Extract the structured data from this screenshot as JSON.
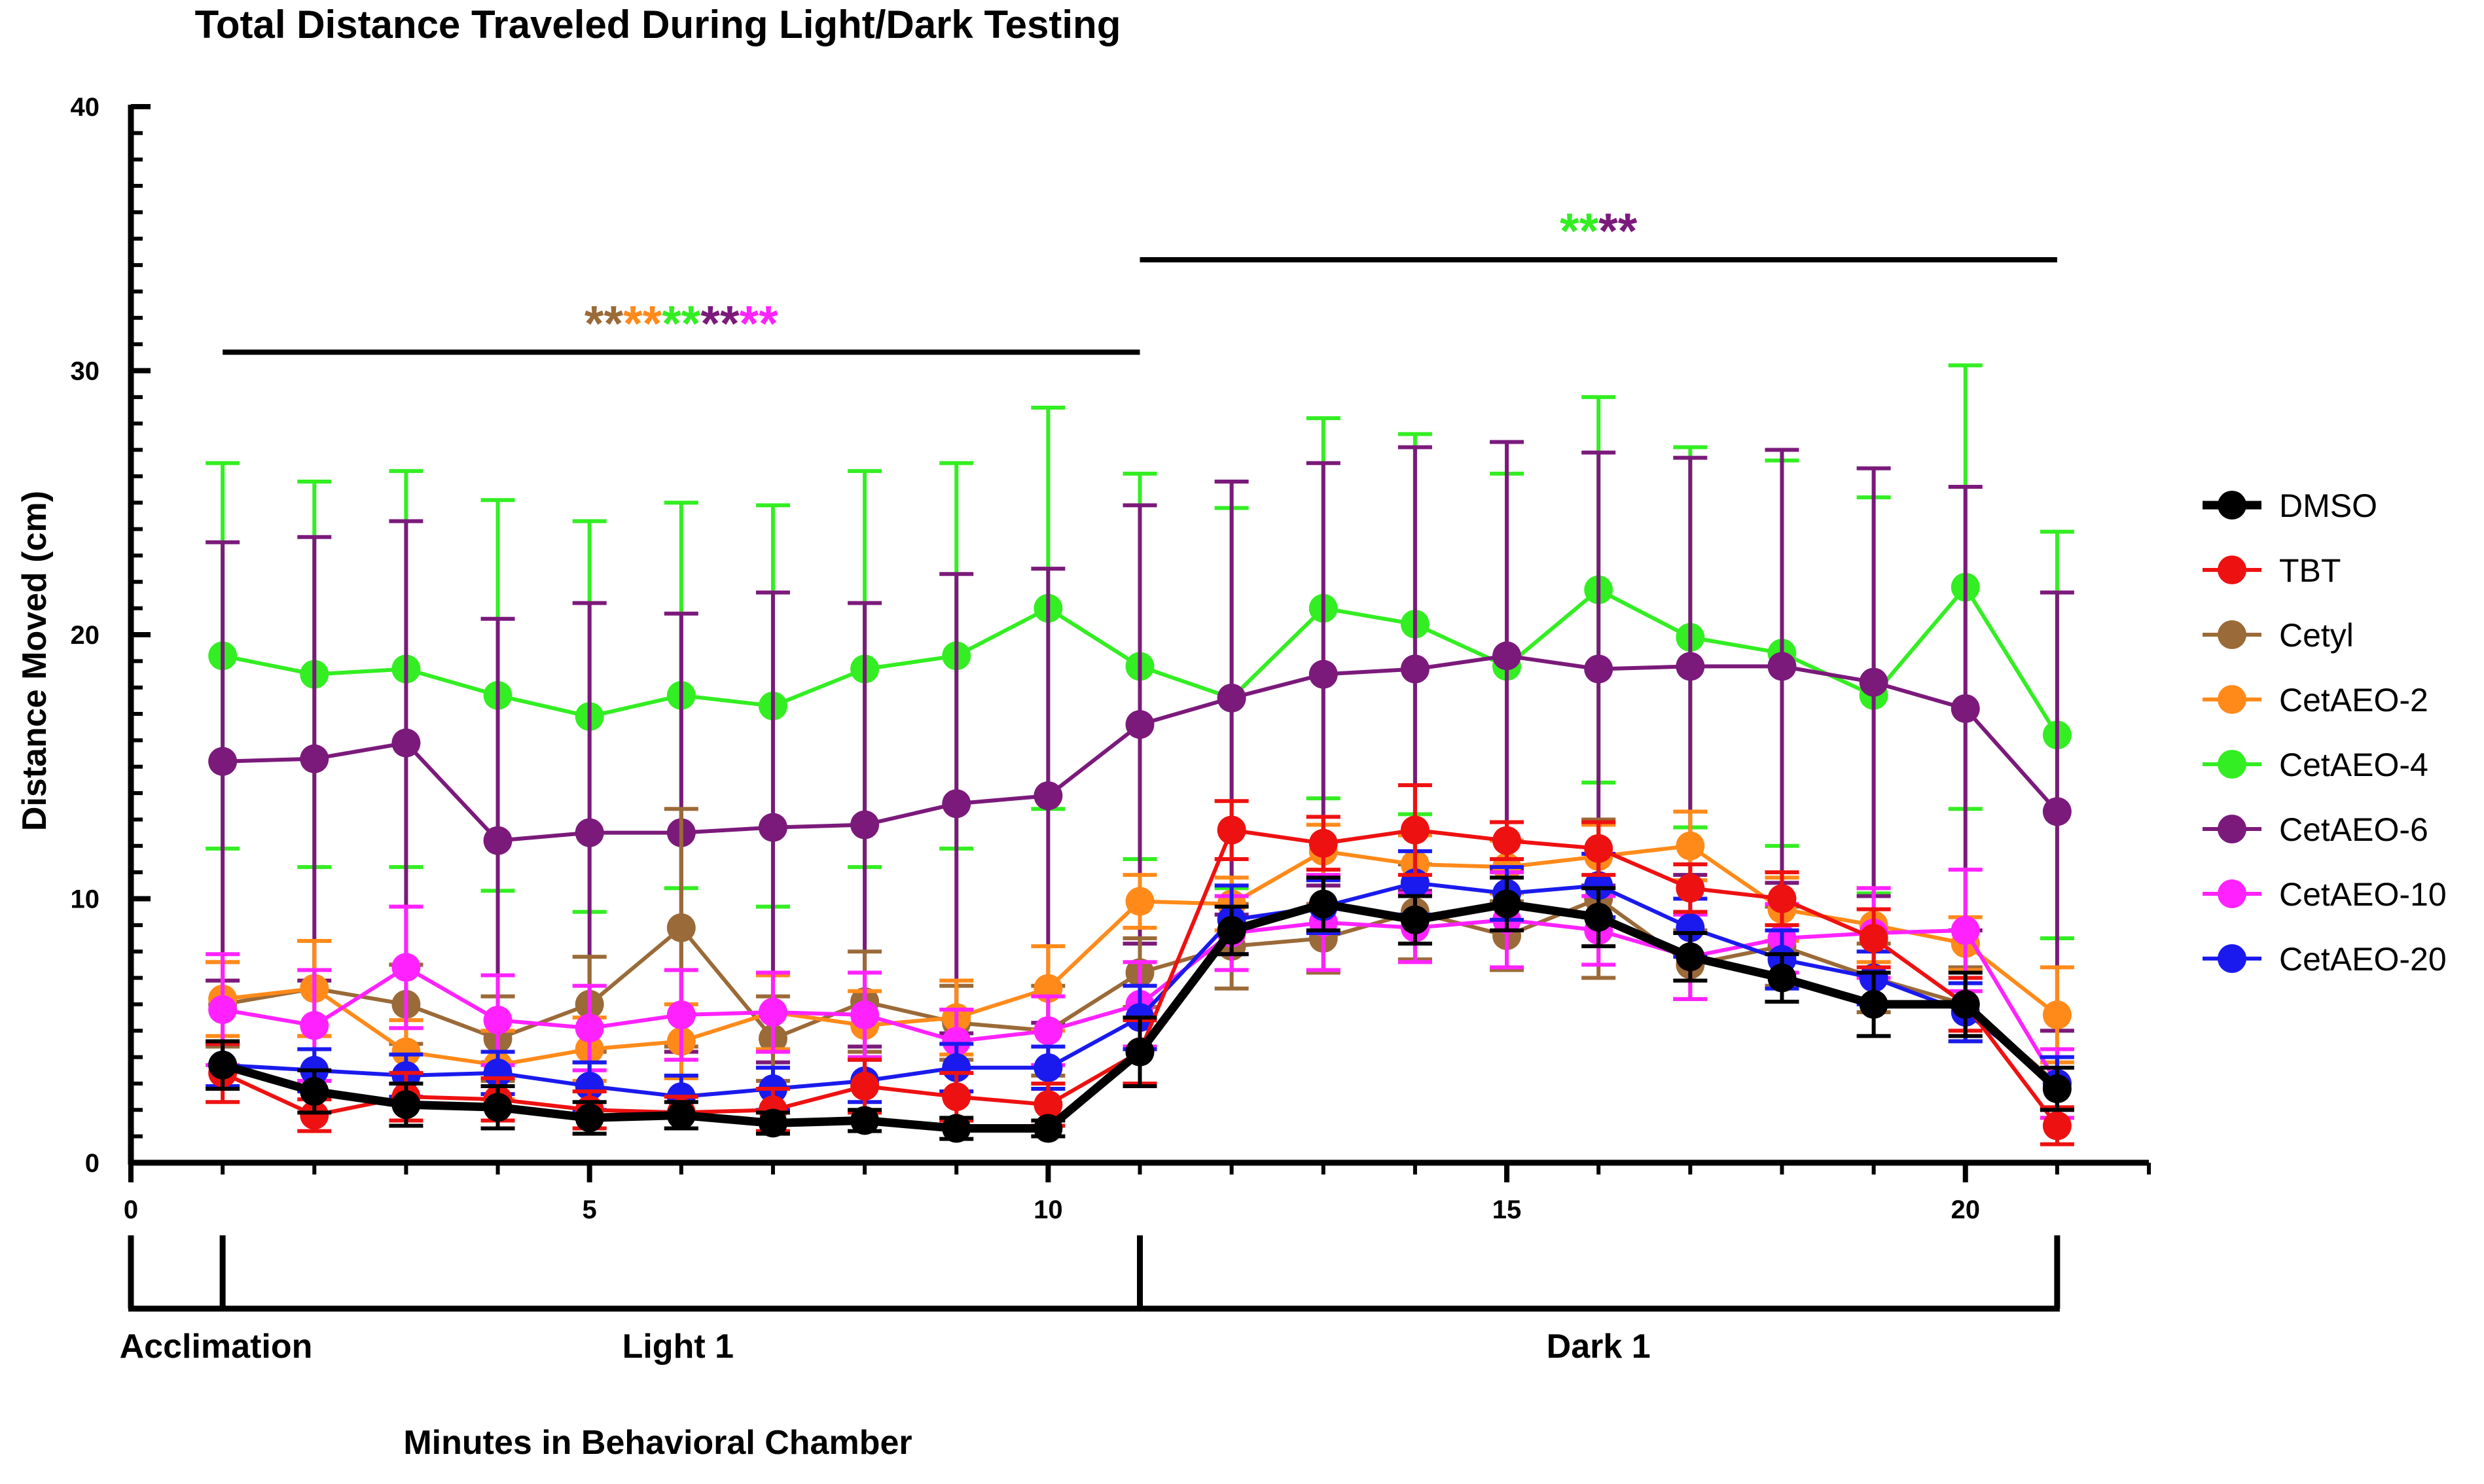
{
  "chart_data": {
    "type": "line",
    "title": "Total Distance Traveled During Light/Dark Testing",
    "xlabel": "Minutes in Behavioral Chamber",
    "ylabel": "Distance Moved (cm)",
    "xlim": [
      0,
      22
    ],
    "ylim": [
      0,
      40
    ],
    "x_ticks": [
      0,
      5,
      10,
      15,
      20
    ],
    "y_ticks": [
      0,
      10,
      20,
      30,
      40
    ],
    "x": [
      1,
      2,
      3,
      4,
      5,
      6,
      7,
      8,
      9,
      10,
      11,
      12,
      13,
      14,
      15,
      16,
      17,
      18,
      19,
      20,
      21
    ],
    "phases": [
      {
        "label": "Acclimation",
        "start": 0,
        "end": 1
      },
      {
        "label": "Light 1",
        "start": 1,
        "end": 11
      },
      {
        "label": "Dark 1",
        "start": 11,
        "end": 21
      }
    ],
    "significance": [
      {
        "start": 1,
        "end": 11,
        "y": 30.7,
        "marks": [
          {
            "text": "**",
            "color": "#9a6a38"
          },
          {
            "text": "**",
            "color": "#ff8a1a"
          },
          {
            "text": "**",
            "color": "#33ee22"
          },
          {
            "text": "**",
            "color": "#7b1a7b"
          },
          {
            "text": "**",
            "color": "#ff22ff"
          }
        ]
      },
      {
        "start": 11,
        "end": 21,
        "y": 34.2,
        "marks": [
          {
            "text": "**",
            "color": "#33ee22"
          },
          {
            "text": "**",
            "color": "#7b1a7b"
          }
        ]
      }
    ],
    "series": [
      {
        "name": "CetAEO-4",
        "color": "#33ee22",
        "values": [
          19.2,
          18.5,
          18.7,
          17.7,
          16.9,
          17.7,
          17.3,
          18.7,
          19.2,
          21.0,
          18.8,
          17.6,
          21.0,
          20.4,
          18.8,
          21.7,
          19.9,
          19.3,
          17.7,
          21.8,
          16.2
        ],
        "errors": [
          7.3,
          7.3,
          7.5,
          7.4,
          7.4,
          7.3,
          7.6,
          7.5,
          7.3,
          7.6,
          7.3,
          7.2,
          7.2,
          7.2,
          7.3,
          7.3,
          7.2,
          7.3,
          7.5,
          8.4,
          7.7
        ]
      },
      {
        "name": "CetAEO-6",
        "color": "#7b1a7b",
        "values": [
          15.2,
          15.3,
          15.9,
          12.2,
          12.5,
          12.5,
          12.7,
          12.8,
          13.6,
          13.9,
          16.6,
          17.6,
          18.5,
          18.7,
          19.2,
          18.7,
          18.8,
          18.8,
          18.2,
          17.2,
          13.3
        ],
        "errors": [
          8.3,
          8.4,
          8.4,
          8.4,
          8.7,
          8.3,
          8.9,
          8.4,
          8.7,
          8.6,
          8.3,
          8.2,
          8.0,
          8.4,
          8.1,
          8.2,
          7.9,
          8.2,
          8.1,
          8.4,
          8.3
        ]
      },
      {
        "name": "Cetyl",
        "color": "#9a6a38",
        "values": [
          6.0,
          6.6,
          6.0,
          4.7,
          6.0,
          8.9,
          4.7,
          6.1,
          5.3,
          5.0,
          7.2,
          8.2,
          8.5,
          9.5,
          8.6,
          10.0,
          7.5,
          8.2,
          7.0,
          6.0,
          3.0
        ],
        "errors": [
          1.6,
          1.8,
          1.5,
          1.6,
          1.8,
          4.5,
          1.6,
          1.9,
          1.4,
          1.7,
          1.3,
          1.6,
          1.3,
          1.8,
          1.3,
          3.0,
          1.3,
          1.5,
          1.3,
          1.4,
          1.3
        ]
      },
      {
        "name": "CetAEO-2",
        "color": "#ff8a1a",
        "values": [
          6.2,
          6.6,
          4.2,
          3.7,
          4.3,
          4.6,
          5.7,
          5.2,
          5.5,
          6.6,
          9.9,
          9.8,
          11.8,
          11.3,
          11.2,
          11.6,
          12.0,
          9.6,
          9.0,
          8.3,
          5.6
        ],
        "errors": [
          1.4,
          1.8,
          1.2,
          1.3,
          1.2,
          1.4,
          1.4,
          1.3,
          1.4,
          1.6,
          1.0,
          1.0,
          1.0,
          1.1,
          1.0,
          1.2,
          1.3,
          1.2,
          1.4,
          1.0,
          1.8
        ]
      },
      {
        "name": "CetAEO-10",
        "color": "#ff22ff",
        "values": [
          5.8,
          5.2,
          7.4,
          5.4,
          5.1,
          5.6,
          5.7,
          5.6,
          4.6,
          5.0,
          6.0,
          8.7,
          9.1,
          8.9,
          9.2,
          8.8,
          7.8,
          8.5,
          8.7,
          8.8,
          3.0
        ],
        "errors": [
          2.1,
          2.1,
          2.3,
          1.7,
          1.6,
          1.7,
          1.5,
          1.6,
          1.2,
          1.3,
          1.6,
          1.4,
          1.8,
          1.3,
          1.8,
          1.3,
          1.6,
          1.3,
          1.7,
          2.3,
          1.3
        ]
      },
      {
        "name": "CetAEO-20",
        "color": "#1a1aee",
        "values": [
          3.7,
          3.5,
          3.3,
          3.4,
          2.9,
          2.5,
          2.8,
          3.1,
          3.6,
          3.6,
          5.5,
          9.2,
          9.7,
          10.6,
          10.2,
          10.5,
          8.9,
          7.7,
          7.0,
          5.7,
          3.0
        ],
        "errors": [
          0.8,
          0.8,
          0.8,
          0.8,
          0.9,
          0.8,
          0.8,
          0.8,
          0.9,
          0.8,
          1.2,
          1.3,
          1.0,
          1.2,
          1.0,
          1.2,
          1.1,
          1.1,
          1.0,
          1.1,
          1.0
        ]
      },
      {
        "name": "TBT",
        "color": "#ee1111",
        "values": [
          3.4,
          1.8,
          2.5,
          2.4,
          2.0,
          1.9,
          2.0,
          2.9,
          2.5,
          2.2,
          4.2,
          12.6,
          12.1,
          12.6,
          12.2,
          11.9,
          10.4,
          10.0,
          8.5,
          6.0,
          1.4
        ],
        "errors": [
          1.1,
          0.6,
          0.9,
          0.8,
          0.7,
          0.6,
          0.8,
          1.0,
          0.9,
          0.8,
          1.2,
          1.1,
          1.0,
          1.7,
          0.7,
          1.0,
          0.9,
          1.0,
          1.1,
          1.0,
          0.7
        ]
      },
      {
        "name": "DMSO",
        "color": "#000000",
        "values": [
          3.7,
          2.7,
          2.2,
          2.1,
          1.7,
          1.8,
          1.5,
          1.6,
          1.3,
          1.3,
          4.2,
          8.8,
          9.8,
          9.2,
          9.8,
          9.3,
          7.8,
          7.0,
          6.0,
          6.0,
          2.8
        ],
        "errors": [
          0.9,
          0.8,
          0.8,
          0.8,
          0.6,
          0.5,
          0.4,
          0.4,
          0.4,
          0.3,
          1.3,
          0.9,
          1.0,
          0.9,
          1.0,
          1.1,
          0.9,
          0.9,
          1.2,
          1.2,
          0.8
        ]
      }
    ],
    "legend": {
      "position": "right",
      "entries": [
        "DMSO",
        "TBT",
        "Cetyl",
        "CetAEO-2",
        "CetAEO-4",
        "CetAEO-6",
        "CetAEO-10",
        "CetAEO-20"
      ]
    }
  }
}
